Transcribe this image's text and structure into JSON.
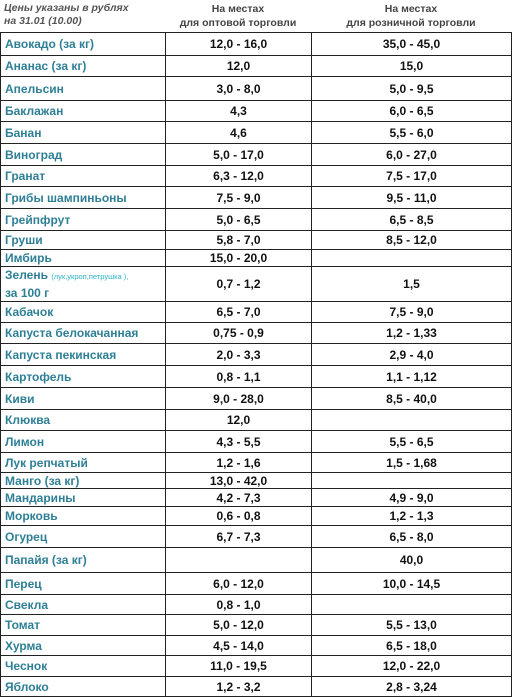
{
  "header": {
    "note": [
      "Цены указаны в рублях",
      "на 31.01 (10.00)"
    ],
    "columns": [
      [
        "На местах",
        "для оптовой торговли"
      ],
      [
        "На местах",
        "для розничной торговли"
      ]
    ]
  },
  "table": {
    "rows": [
      {
        "name": "Авокадо (за кг)",
        "wholesale": "12,0 - 16,0",
        "retail": "35,0 - 45,0"
      },
      {
        "name": "Ананас (за кг)",
        "wholesale": "12,0",
        "retail": "15,0"
      },
      {
        "name": "Апельсин",
        "wholesale": "3,0 - 8,0",
        "retail": "5,0 - 9,5"
      },
      {
        "name": "Баклажан",
        "wholesale": "4,3",
        "retail": "6,0 - 6,5"
      },
      {
        "name": "Банан",
        "wholesale": "4,6",
        "retail": "5,5 - 6,0"
      },
      {
        "name": "Виноград",
        "wholesale": "5,0 - 17,0",
        "retail": "6,0 - 27,0"
      },
      {
        "name": "Гранат",
        "wholesale": "6,3 - 12,0",
        "retail": "7,5 - 17,0"
      },
      {
        "name": "Грибы шампиньоны",
        "wholesale": "7,5 - 9,0",
        "retail": "9,5 - 11,0"
      },
      {
        "name": "Грейпфрут",
        "wholesale": "5,0 - 6,5",
        "retail": "6,5 - 8,5"
      },
      {
        "name": "Груши",
        "wholesale": "5,8 - 7,0",
        "retail": "8,5 - 12,0"
      },
      {
        "name": "Имбирь",
        "wholesale": "15,0 - 20,0",
        "retail": null
      },
      {
        "name": "Зелень",
        "detail": "(лук,укроп,петрушка ),",
        "suffix": "за 100 г",
        "wholesale": "0,7 - 1,2",
        "retail": "1,5"
      },
      {
        "name": "Кабачок",
        "wholesale": "6,5 - 7,0",
        "retail": "7,5 - 9,0"
      },
      {
        "name": "Капуста белокачанная",
        "wholesale": "0,75 - 0,9",
        "retail": "1,2 - 1,33"
      },
      {
        "name": "Капуста пекинская",
        "wholesale": "2,0 - 3,3",
        "retail": "2,9 - 4,0"
      },
      {
        "name": "Картофель",
        "wholesale": "0,8 - 1,1",
        "retail": "1,1 - 1,12"
      },
      {
        "name": "Киви",
        "wholesale": "9,0 - 28,0",
        "retail": "8,5 - 40,0"
      },
      {
        "name": "Клюква",
        "wholesale": "12,0",
        "retail": null
      },
      {
        "name": "Лимон",
        "wholesale": "4,3 - 5,5",
        "retail": "5,5 - 6,5"
      },
      {
        "name": "Лук репчатый",
        "wholesale": "1,2 - 1,6",
        "retail": "1,5 - 1,68"
      },
      {
        "name": "Манго (за кг)",
        "wholesale": "13,0 - 42,0",
        "retail": null
      },
      {
        "name": "Мандарины",
        "wholesale": "4,2 - 7,3",
        "retail": "4,9 - 9,0"
      },
      {
        "name": "Морковь",
        "wholesale": "0,6 - 0,8",
        "retail": "1,2 - 1,3"
      },
      {
        "name": "Огурец",
        "wholesale": "6,7 - 7,3",
        "retail": "6,5 - 8,0"
      },
      {
        "name": "Папайя (за кг)",
        "wholesale": null,
        "retail": "40,0"
      },
      {
        "name": "Перец",
        "wholesale": "6,0 - 12,0",
        "retail": "10,0 - 14,5"
      },
      {
        "name": "Свекла",
        "wholesale": "0,8 - 1,0",
        "retail": null
      },
      {
        "name": "Томат",
        "wholesale": "5,0 - 12,0",
        "retail": "5,5 - 13,0"
      },
      {
        "name": "Хурма",
        "wholesale": "4,5 - 14,0",
        "retail": "6,5 - 18,0"
      },
      {
        "name": "Чеснок",
        "wholesale": "11,0 - 19,5",
        "retail": "12,0 - 22,0"
      },
      {
        "name": "Яблоко",
        "wholesale": "1,2 - 3,2",
        "retail": "2,8 - 3,24"
      }
    ]
  }
}
